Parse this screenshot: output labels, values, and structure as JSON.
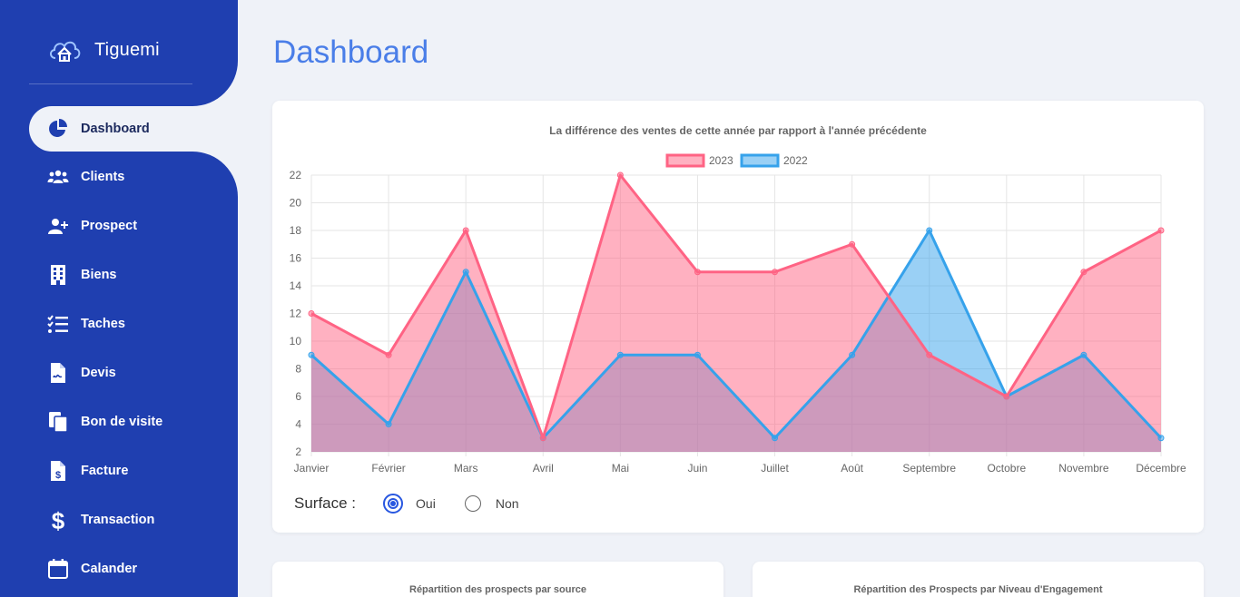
{
  "app": {
    "name": "Tiguemi"
  },
  "sidebar": {
    "items": [
      {
        "label": "Dashboard",
        "icon": "pie-chart-icon",
        "active": true
      },
      {
        "label": "Clients",
        "icon": "users-icon"
      },
      {
        "label": "Prospect",
        "icon": "user-plus-icon"
      },
      {
        "label": "Biens",
        "icon": "building-icon"
      },
      {
        "label": "Taches",
        "icon": "task-list-icon"
      },
      {
        "label": "Devis",
        "icon": "file-signature-icon"
      },
      {
        "label": "Bon de visite",
        "icon": "copy-files-icon"
      },
      {
        "label": "Facture",
        "icon": "invoice-dollar-icon"
      },
      {
        "label": "Transaction",
        "icon": "dollar-icon"
      },
      {
        "label": "Calander",
        "icon": "calendar-icon"
      }
    ]
  },
  "main": {
    "title": "Dashboard",
    "surface": {
      "label": "Surface :",
      "options": [
        "Oui",
        "Non"
      ],
      "selected": "Oui"
    },
    "cards": [
      {
        "title": "Répartition des prospects par source"
      },
      {
        "title": "Répartition des Prospects par Niveau d'Engagement"
      }
    ]
  },
  "chart_data": {
    "type": "area",
    "title": "La différence des ventes de cette année par rapport à l'année précédente",
    "categories": [
      "Janvier",
      "Février",
      "Mars",
      "Avril",
      "Mai",
      "Juin",
      "Juillet",
      "Août",
      "Septembre",
      "Octobre",
      "Novembre",
      "Décembre"
    ],
    "series": [
      {
        "name": "2023",
        "values": [
          12,
          9,
          18,
          3,
          22,
          15,
          15,
          17,
          9,
          6,
          15,
          18
        ],
        "color": "#ff6384",
        "fill": "rgba(255,99,132,0.5)"
      },
      {
        "name": "2022",
        "values": [
          9,
          4,
          15,
          3,
          9,
          9,
          3,
          9,
          18,
          6,
          9,
          3
        ],
        "color": "#36a2eb",
        "fill": "rgba(54,162,235,0.5)"
      }
    ],
    "yticks": [
      2,
      4,
      6,
      8,
      10,
      12,
      14,
      16,
      18,
      20,
      22
    ],
    "ylim": [
      2,
      22
    ],
    "grid": true,
    "legend": "top"
  }
}
